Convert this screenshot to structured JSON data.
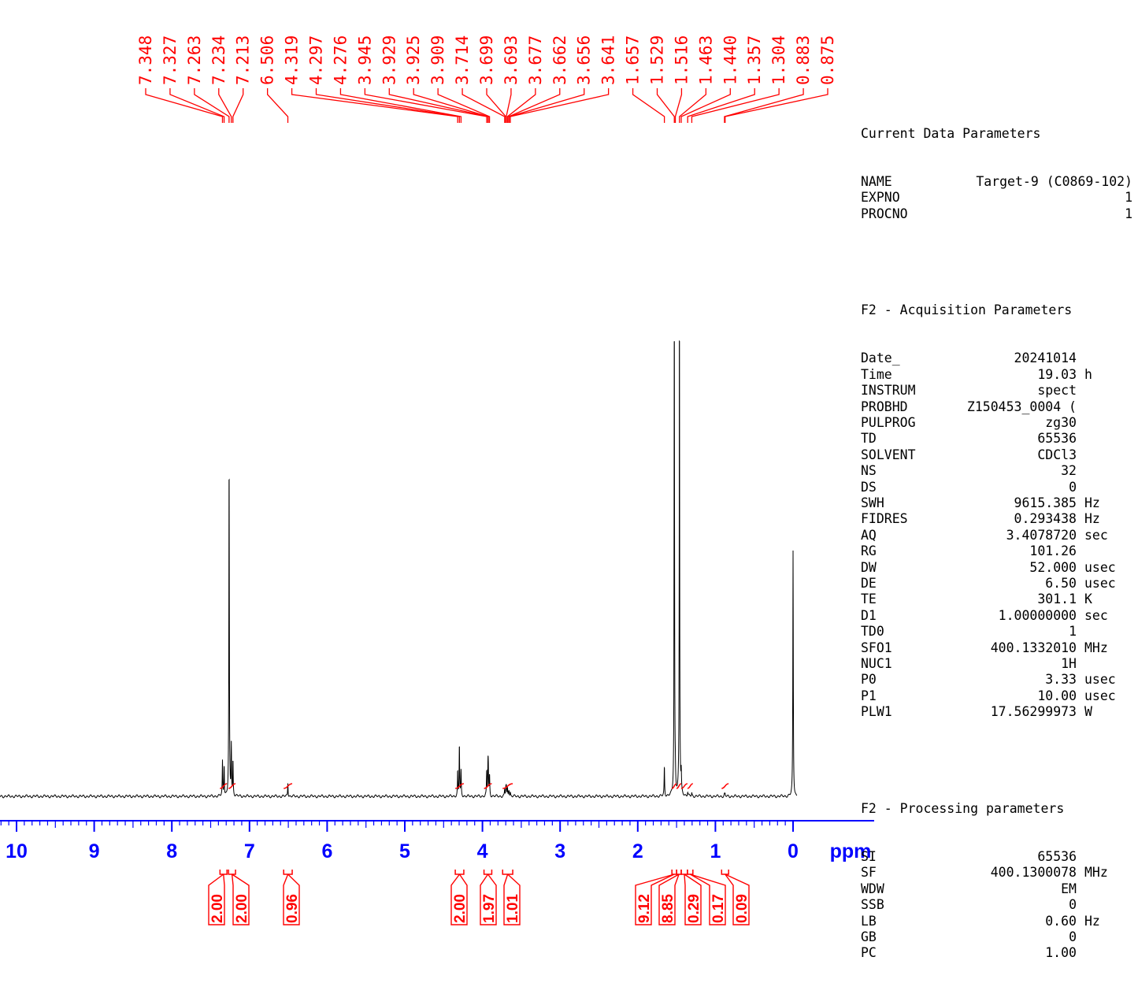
{
  "chart_data": {
    "type": "line",
    "xlabel": "ppm",
    "xlim": [
      10.2,
      -0.05
    ],
    "x_ticks": [
      "10",
      "9",
      "8",
      "7",
      "6",
      "5",
      "4",
      "3",
      "2",
      "1",
      "0"
    ],
    "x_tick_values": [
      10,
      9,
      8,
      7,
      6,
      5,
      4,
      3,
      2,
      1,
      0
    ],
    "peak_labels": [
      "7.348",
      "7.327",
      "7.263",
      "7.234",
      "7.213",
      "6.506",
      "4.319",
      "4.297",
      "4.276",
      "3.945",
      "3.929",
      "3.925",
      "3.909",
      "3.714",
      "3.699",
      "3.693",
      "3.677",
      "3.662",
      "3.656",
      "3.641",
      "1.657",
      "1.529",
      "1.516",
      "1.463",
      "1.440",
      "1.357",
      "1.304",
      "0.883",
      "0.875"
    ],
    "peak_positions": [
      7.348,
      7.327,
      7.263,
      7.234,
      7.213,
      6.506,
      4.319,
      4.297,
      4.276,
      3.945,
      3.929,
      3.925,
      3.909,
      3.714,
      3.699,
      3.693,
      3.677,
      3.662,
      3.656,
      3.641,
      1.657,
      1.529,
      1.516,
      1.463,
      1.44,
      1.357,
      1.304,
      0.883,
      0.875
    ],
    "peaks": [
      {
        "x": 7.348,
        "y": 0.056
      },
      {
        "x": 7.327,
        "y": 0.051
      },
      {
        "x": 7.263,
        "y": 0.553
      },
      {
        "x": 7.234,
        "y": 0.082
      },
      {
        "x": 7.213,
        "y": 0.056
      },
      {
        "x": 6.506,
        "y": 0.023
      },
      {
        "x": 4.319,
        "y": 0.04
      },
      {
        "x": 4.297,
        "y": 0.085
      },
      {
        "x": 4.276,
        "y": 0.04
      },
      {
        "x": 3.945,
        "y": 0.04
      },
      {
        "x": 3.929,
        "y": 0.044
      },
      {
        "x": 3.925,
        "y": 0.04
      },
      {
        "x": 3.909,
        "y": 0.033
      },
      {
        "x": 3.714,
        "y": 0.01
      },
      {
        "x": 3.699,
        "y": 0.014
      },
      {
        "x": 3.693,
        "y": 0.015
      },
      {
        "x": 3.677,
        "y": 0.012
      },
      {
        "x": 3.662,
        "y": 0.008
      },
      {
        "x": 3.656,
        "y": 0.008
      },
      {
        "x": 3.641,
        "y": 0.006
      },
      {
        "x": 1.657,
        "y": 0.048
      },
      {
        "x": 1.529,
        "y": 0.796
      },
      {
        "x": 1.516,
        "y": 0.02
      },
      {
        "x": 1.463,
        "y": 0.798
      },
      {
        "x": 1.44,
        "y": 0.03
      },
      {
        "x": 1.357,
        "y": 0.006
      },
      {
        "x": 1.304,
        "y": 0.005
      },
      {
        "x": 0.883,
        "y": 0.003
      },
      {
        "x": 0.875,
        "y": 0.003
      },
      {
        "x": 0.0,
        "y": 0.4
      }
    ],
    "integrals": [
      {
        "label": "2.00",
        "from": 7.38,
        "to": 7.29
      },
      {
        "label": "2.00",
        "from": 7.27,
        "to": 7.18
      },
      {
        "label": "0.96",
        "from": 6.56,
        "to": 6.45
      },
      {
        "label": "2.00",
        "from": 4.35,
        "to": 4.24
      },
      {
        "label": "1.97",
        "from": 3.98,
        "to": 3.88
      },
      {
        "label": "1.01",
        "from": 3.74,
        "to": 3.61
      },
      {
        "label": "9.12",
        "from": 1.56,
        "to": 1.5
      },
      {
        "label": "8.85",
        "from": 1.5,
        "to": 1.44
      },
      {
        "label": "0.29",
        "from": 1.44,
        "to": 1.36
      },
      {
        "label": "0.17",
        "from": 1.36,
        "to": 1.29
      },
      {
        "label": "0.09",
        "from": 0.92,
        "to": 0.83
      }
    ],
    "colors": {
      "spectrum": "#000000",
      "labels": "#ff0000",
      "axis": "#0000ff"
    }
  },
  "parameters": {
    "current": {
      "title": "Current Data Parameters",
      "rows": [
        {
          "name": "NAME",
          "value": "Target-9 (C0869-102)",
          "unit": ""
        },
        {
          "name": "EXPNO",
          "value": "1",
          "unit": ""
        },
        {
          "name": "PROCNO",
          "value": "1",
          "unit": ""
        }
      ]
    },
    "acquisition": {
      "title": "F2 - Acquisition Parameters",
      "rows": [
        {
          "name": "Date_",
          "value": "20241014",
          "unit": ""
        },
        {
          "name": "Time",
          "value": "19.03",
          "unit": "h"
        },
        {
          "name": "INSTRUM",
          "value": "spect",
          "unit": ""
        },
        {
          "name": "PROBHD",
          "value": "Z150453_0004 (",
          "unit": ""
        },
        {
          "name": "PULPROG",
          "value": "zg30",
          "unit": ""
        },
        {
          "name": "TD",
          "value": "65536",
          "unit": ""
        },
        {
          "name": "SOLVENT",
          "value": "CDCl3",
          "unit": ""
        },
        {
          "name": "NS",
          "value": "32",
          "unit": ""
        },
        {
          "name": "DS",
          "value": "0",
          "unit": ""
        },
        {
          "name": "SWH",
          "value": "9615.385",
          "unit": "Hz"
        },
        {
          "name": "FIDRES",
          "value": "0.293438",
          "unit": "Hz"
        },
        {
          "name": "AQ",
          "value": "3.4078720",
          "unit": "sec"
        },
        {
          "name": "RG",
          "value": "101.26",
          "unit": ""
        },
        {
          "name": "DW",
          "value": "52.000",
          "unit": "usec"
        },
        {
          "name": "DE",
          "value": "6.50",
          "unit": "usec"
        },
        {
          "name": "TE",
          "value": "301.1",
          "unit": "K"
        },
        {
          "name": "D1",
          "value": "1.00000000",
          "unit": "sec"
        },
        {
          "name": "TD0",
          "value": "1",
          "unit": ""
        },
        {
          "name": "SFO1",
          "value": "400.1332010",
          "unit": "MHz"
        },
        {
          "name": "NUC1",
          "value": "1H",
          "unit": ""
        },
        {
          "name": "P0",
          "value": "3.33",
          "unit": "usec"
        },
        {
          "name": "P1",
          "value": "10.00",
          "unit": "usec"
        },
        {
          "name": "PLW1",
          "value": "17.56299973",
          "unit": "W"
        }
      ]
    },
    "processing": {
      "title": "F2 - Processing parameters",
      "rows": [
        {
          "name": "SI",
          "value": "65536",
          "unit": ""
        },
        {
          "name": "SF",
          "value": "400.1300078",
          "unit": "MHz"
        },
        {
          "name": "WDW",
          "value": "EM",
          "unit": ""
        },
        {
          "name": "SSB",
          "value": "0",
          "unit": ""
        },
        {
          "name": "LB",
          "value": "0.60",
          "unit": "Hz"
        },
        {
          "name": "GB",
          "value": "0",
          "unit": ""
        },
        {
          "name": "PC",
          "value": "1.00",
          "unit": ""
        }
      ]
    }
  }
}
